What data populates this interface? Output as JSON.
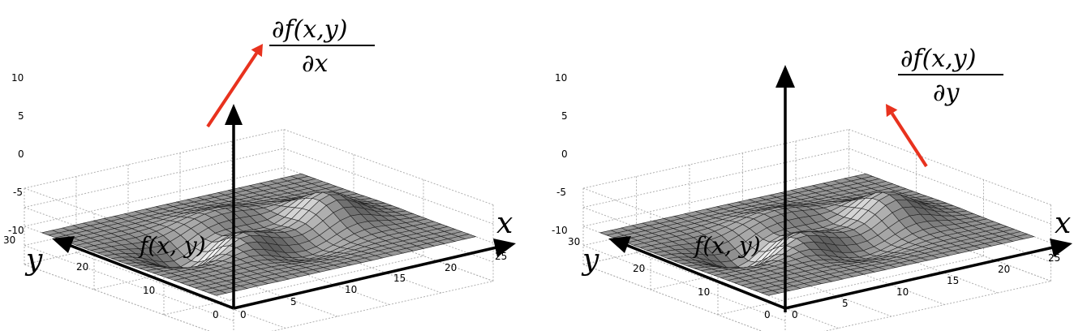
{
  "panels": [
    {
      "z_ticks": [
        "10",
        "5",
        "0",
        "-5",
        "-10"
      ],
      "x_ticks": [
        "0",
        "5",
        "10",
        "15",
        "20",
        "25"
      ],
      "y_ticks": [
        "30",
        "20",
        "10",
        "0"
      ],
      "x_label": "x",
      "y_label": "y",
      "f_label": "f(x, y)",
      "deriv_num": "∂f(x,y)",
      "deriv_den": "∂x",
      "arrow_color": "#e8321e"
    },
    {
      "z_ticks": [
        "10",
        "5",
        "0",
        "-5",
        "-10"
      ],
      "x_ticks": [
        "0",
        "5",
        "10",
        "15",
        "20",
        "25"
      ],
      "y_ticks": [
        "30",
        "20",
        "10",
        "0"
      ],
      "x_label": "x",
      "y_label": "y",
      "f_label": "f(x, y)",
      "deriv_num": "∂f(x,y)",
      "deriv_den": "∂y",
      "arrow_color": "#e8321e"
    }
  ],
  "surface_function": "peaks",
  "colors": {
    "axis": "#000000",
    "grid": "#b0b0b0",
    "mesh_edge": "#222222"
  }
}
